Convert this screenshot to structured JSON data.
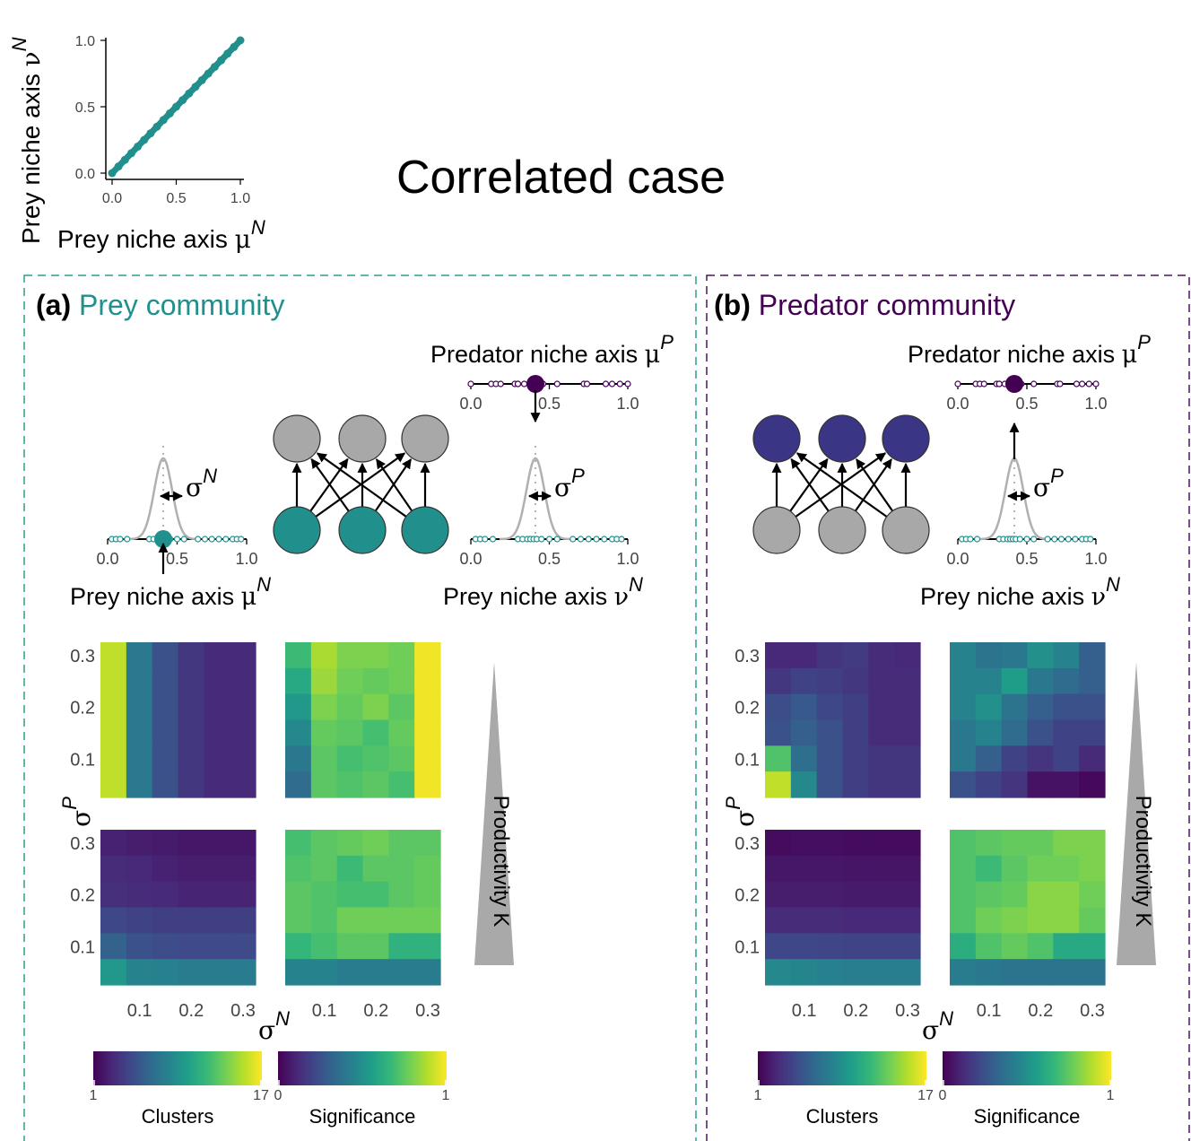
{
  "title": "Correlated case",
  "colors": {
    "prey": "#21908c",
    "predator": "#440154",
    "prey_panel_border": "#2a9d8f",
    "predator_panel_border": "#4a1560",
    "gray_node": "#a8a8a8",
    "predator_node_b": "#3b3585",
    "gaussian": "#b0b0b0",
    "triangle": "#a9a9a9"
  },
  "inset": {
    "xlabel_text": "Prey niche axis ",
    "xlabel_sym": "μ",
    "xlabel_sup": "N",
    "ylabel_text": "Prey niche axis ",
    "ylabel_sym": "ν",
    "ylabel_sup": "N",
    "xticks": [
      "0.0",
      "0.5",
      "1.0"
    ],
    "yticks": [
      "0.0",
      "0.5",
      "1.0"
    ]
  },
  "panels": {
    "a": {
      "letter": "(a)",
      "name": "Prey community",
      "pred_axis_text": "Predator niche axis ",
      "pred_axis_sym": "μ",
      "pred_axis_sup": "P",
      "prey_mu_text": "Prey niche axis ",
      "prey_mu_sym": "μ",
      "prey_mu_sup": "N",
      "prey_nu_text": "Prey niche axis ",
      "prey_nu_sym": "ν",
      "prey_nu_sup": "N",
      "sigma_n_sym": "σ",
      "sigma_n_sup": "N",
      "sigma_p_sym": "σ",
      "sigma_p_sup": "P",
      "axis_ticks": [
        "0.0",
        "0.5",
        "1.0"
      ],
      "heat_yticks": [
        "0.3",
        "0.2",
        "0.1"
      ],
      "heat_xticks": [
        "0.1",
        "0.2",
        "0.3"
      ],
      "heat_ylabel_sym": "σ",
      "heat_ylabel_sup": "P",
      "heat_xlabel_sym": "σ",
      "heat_xlabel_sup": "N",
      "productivity": "Productivity K",
      "colorbar_clusters": {
        "label": "Clusters",
        "min": "1",
        "max": "17"
      },
      "colorbar_significance": {
        "label": "Significance",
        "min": "0",
        "max": "1"
      }
    },
    "b": {
      "letter": "(b)",
      "name": "Predator community",
      "pred_axis_text": "Predator niche axis ",
      "pred_axis_sym": "μ",
      "pred_axis_sup": "P",
      "prey_nu_text": "Prey niche axis ",
      "prey_nu_sym": "ν",
      "prey_nu_sup": "N",
      "sigma_p_sym": "σ",
      "sigma_p_sup": "P",
      "axis_ticks": [
        "0.0",
        "0.5",
        "1.0"
      ],
      "heat_yticks": [
        "0.3",
        "0.2",
        "0.1"
      ],
      "heat_xticks": [
        "0.1",
        "0.2",
        "0.3"
      ],
      "heat_ylabel_sym": "σ",
      "heat_ylabel_sup": "P",
      "heat_xlabel_sym": "σ",
      "heat_xlabel_sup": "N",
      "productivity": "Productivity K",
      "colorbar_clusters": {
        "label": "Clusters",
        "min": "1",
        "max": "17"
      },
      "colorbar_significance": {
        "label": "Significance",
        "min": "0",
        "max": "1"
      }
    }
  },
  "chart_data": [
    {
      "type": "scatter",
      "title": "",
      "xlabel": "Prey niche axis μ^N",
      "ylabel": "Prey niche axis ν^N",
      "xlim": [
        0,
        1
      ],
      "ylim": [
        0,
        1
      ],
      "x": [
        0,
        0.05,
        0.1,
        0.15,
        0.2,
        0.25,
        0.3,
        0.35,
        0.4,
        0.45,
        0.5,
        0.55,
        0.6,
        0.65,
        0.7,
        0.75,
        0.8,
        0.85,
        0.9,
        0.95,
        1.0
      ],
      "y": [
        0,
        0.05,
        0.1,
        0.15,
        0.2,
        0.25,
        0.3,
        0.35,
        0.4,
        0.45,
        0.5,
        0.55,
        0.6,
        0.65,
        0.7,
        0.75,
        0.8,
        0.85,
        0.9,
        0.95,
        1.0
      ]
    },
    {
      "type": "heatmap",
      "panel": "a",
      "row": "top",
      "metric": "Clusters",
      "range": [
        1,
        17
      ],
      "x_sigma_N": [
        0.025,
        0.075,
        0.125,
        0.175,
        0.225,
        0.275
      ],
      "y_sigma_P": [
        0.3,
        0.25,
        0.2,
        0.15,
        0.1,
        0.05
      ],
      "values": [
        [
          15.5,
          7.5,
          5.0,
          3.6,
          2.9,
          2.9
        ],
        [
          15.5,
          7.5,
          5.0,
          3.6,
          2.9,
          2.9
        ],
        [
          15.5,
          7.5,
          5.0,
          3.6,
          2.9,
          2.9
        ],
        [
          15.5,
          7.5,
          5.0,
          3.6,
          2.9,
          2.9
        ],
        [
          15.5,
          7.5,
          5.0,
          3.6,
          2.9,
          2.9
        ],
        [
          15.5,
          7.5,
          5.0,
          3.6,
          2.9,
          2.9
        ]
      ]
    },
    {
      "type": "heatmap",
      "panel": "a",
      "row": "top",
      "metric": "Significance",
      "range": [
        0,
        1
      ],
      "x_sigma_N": [
        0.025,
        0.075,
        0.125,
        0.175,
        0.225,
        0.275
      ],
      "y_sigma_P": [
        0.3,
        0.25,
        0.2,
        0.15,
        0.1,
        0.05
      ],
      "values": [
        [
          0.68,
          0.87,
          0.8,
          0.8,
          0.78,
          0.98
        ],
        [
          0.6,
          0.85,
          0.78,
          0.76,
          0.78,
          0.98
        ],
        [
          0.53,
          0.8,
          0.76,
          0.8,
          0.74,
          0.98
        ],
        [
          0.47,
          0.76,
          0.74,
          0.7,
          0.76,
          0.98
        ],
        [
          0.4,
          0.74,
          0.7,
          0.72,
          0.74,
          0.98
        ],
        [
          0.35,
          0.74,
          0.72,
          0.74,
          0.7,
          0.98
        ]
      ]
    },
    {
      "type": "heatmap",
      "panel": "a",
      "row": "bottom",
      "metric": "Clusters",
      "range": [
        1,
        17
      ],
      "x_sigma_N": [
        0.025,
        0.075,
        0.125,
        0.175,
        0.225,
        0.275
      ],
      "y_sigma_P": [
        0.3,
        0.25,
        0.2,
        0.15,
        0.1,
        0.05
      ],
      "values": [
        [
          2.5,
          2.3,
          2.2,
          2.0,
          2.0,
          2.0
        ],
        [
          3.0,
          2.8,
          2.5,
          2.3,
          2.3,
          2.3
        ],
        [
          3.2,
          3.0,
          2.9,
          2.6,
          2.6,
          2.6
        ],
        [
          4.5,
          4.2,
          4.0,
          4.0,
          4.0,
          4.0
        ],
        [
          6.0,
          5.0,
          4.8,
          4.6,
          4.6,
          4.6
        ],
        [
          9.5,
          8.2,
          8.0,
          7.6,
          7.6,
          7.6
        ]
      ]
    },
    {
      "type": "heatmap",
      "panel": "a",
      "row": "bottom",
      "metric": "Significance",
      "range": [
        0,
        1
      ],
      "x_sigma_N": [
        0.025,
        0.075,
        0.125,
        0.175,
        0.225,
        0.275
      ],
      "y_sigma_P": [
        0.3,
        0.25,
        0.2,
        0.15,
        0.1,
        0.05
      ],
      "values": [
        [
          0.7,
          0.74,
          0.76,
          0.78,
          0.74,
          0.74
        ],
        [
          0.72,
          0.74,
          0.68,
          0.74,
          0.74,
          0.76
        ],
        [
          0.74,
          0.72,
          0.7,
          0.7,
          0.74,
          0.76
        ],
        [
          0.74,
          0.72,
          0.78,
          0.78,
          0.78,
          0.78
        ],
        [
          0.66,
          0.7,
          0.74,
          0.74,
          0.64,
          0.64
        ],
        [
          0.45,
          0.45,
          0.42,
          0.42,
          0.42,
          0.42
        ]
      ]
    },
    {
      "type": "heatmap",
      "panel": "b",
      "row": "top",
      "metric": "Clusters",
      "range": [
        1,
        17
      ],
      "x_sigma_N": [
        0.025,
        0.075,
        0.125,
        0.175,
        0.225,
        0.275
      ],
      "y_sigma_P": [
        0.3,
        0.25,
        0.2,
        0.15,
        0.1,
        0.05
      ],
      "values": [
        [
          2.8,
          2.8,
          3.5,
          3.8,
          3.0,
          2.8
        ],
        [
          3.6,
          4.2,
          4.0,
          3.6,
          3.0,
          3.0
        ],
        [
          4.8,
          5.5,
          4.5,
          4.0,
          3.0,
          3.0
        ],
        [
          5.0,
          5.8,
          5.0,
          4.0,
          3.0,
          3.0
        ],
        [
          12.5,
          6.8,
          5.0,
          4.0,
          3.5,
          3.5
        ],
        [
          15.5,
          8.5,
          5.0,
          4.0,
          3.5,
          3.5
        ]
      ]
    },
    {
      "type": "heatmap",
      "panel": "b",
      "row": "top",
      "metric": "Significance",
      "range": [
        0,
        1
      ],
      "x_sigma_N": [
        0.025,
        0.075,
        0.125,
        0.175,
        0.225,
        0.275
      ],
      "y_sigma_P": [
        0.3,
        0.25,
        0.2,
        0.15,
        0.1,
        0.05
      ],
      "values": [
        [
          0.45,
          0.38,
          0.4,
          0.5,
          0.45,
          0.3
        ],
        [
          0.45,
          0.45,
          0.55,
          0.4,
          0.35,
          0.3
        ],
        [
          0.45,
          0.5,
          0.38,
          0.3,
          0.25,
          0.25
        ],
        [
          0.4,
          0.45,
          0.35,
          0.25,
          0.2,
          0.2
        ],
        [
          0.4,
          0.3,
          0.2,
          0.15,
          0.2,
          0.12
        ],
        [
          0.25,
          0.2,
          0.15,
          0.05,
          0.05,
          0.02
        ]
      ]
    },
    {
      "type": "heatmap",
      "panel": "b",
      "row": "bottom",
      "metric": "Clusters",
      "range": [
        1,
        17
      ],
      "x_sigma_N": [
        0.025,
        0.075,
        0.125,
        0.175,
        0.225,
        0.275
      ],
      "y_sigma_P": [
        0.3,
        0.25,
        0.2,
        0.15,
        0.1,
        0.05
      ],
      "values": [
        [
          1.5,
          1.6,
          1.6,
          1.5,
          1.5,
          1.5
        ],
        [
          2.0,
          2.0,
          2.0,
          1.9,
          1.9,
          1.9
        ],
        [
          2.3,
          2.3,
          2.3,
          2.2,
          2.2,
          2.2
        ],
        [
          3.0,
          3.0,
          3.0,
          2.8,
          2.8,
          2.8
        ],
        [
          4.5,
          4.5,
          4.4,
          4.3,
          4.3,
          4.3
        ],
        [
          8.5,
          8.3,
          8.0,
          7.8,
          7.8,
          7.8
        ]
      ]
    },
    {
      "type": "heatmap",
      "panel": "b",
      "row": "bottom",
      "metric": "Significance",
      "range": [
        0,
        1
      ],
      "x_sigma_N": [
        0.025,
        0.075,
        0.125,
        0.175,
        0.225,
        0.275
      ],
      "y_sigma_P": [
        0.3,
        0.25,
        0.2,
        0.15,
        0.1,
        0.05
      ],
      "values": [
        [
          0.72,
          0.74,
          0.76,
          0.76,
          0.8,
          0.8
        ],
        [
          0.72,
          0.68,
          0.74,
          0.78,
          0.78,
          0.8
        ],
        [
          0.72,
          0.74,
          0.76,
          0.82,
          0.82,
          0.78
        ],
        [
          0.72,
          0.78,
          0.8,
          0.82,
          0.82,
          0.76
        ],
        [
          0.62,
          0.72,
          0.76,
          0.72,
          0.6,
          0.6
        ],
        [
          0.42,
          0.4,
          0.38,
          0.38,
          0.38,
          0.38
        ]
      ]
    }
  ]
}
